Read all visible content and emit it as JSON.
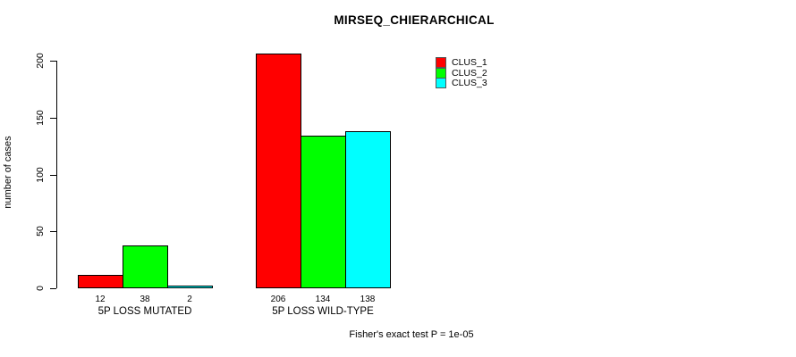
{
  "title": "MIRSEQ_CHIERARCHICAL",
  "footer": "Fisher's exact test P = 1e-05",
  "chart_data": {
    "type": "bar",
    "title": "MIRSEQ_CHIERARCHICAL",
    "xlabel": "",
    "ylabel": "number of cases",
    "categories": [
      "5P LOSS MUTATED",
      "5P LOSS WILD-TYPE"
    ],
    "series": [
      {
        "name": "CLUS_1",
        "color": "#FF0000",
        "values": [
          12,
          206
        ]
      },
      {
        "name": "CLUS_2",
        "color": "#00FF00",
        "values": [
          38,
          134
        ]
      },
      {
        "name": "CLUS_3",
        "color": "#00FFFF",
        "values": [
          2,
          138
        ]
      }
    ],
    "bar_value_labels": [
      [
        12,
        38,
        2
      ],
      [
        206,
        134,
        138
      ]
    ],
    "yticks": [
      0,
      50,
      100,
      150,
      200
    ],
    "ylim": [
      0,
      210
    ],
    "grid": false,
    "legend_position": "top-right",
    "annotation": "Fisher's exact test P = 1e-05"
  },
  "colors": {
    "axis": "#000000",
    "background": "#FFFFFF",
    "clus_1": "#FF0000",
    "clus_2": "#00FF00",
    "clus_3": "#00FFFF"
  }
}
